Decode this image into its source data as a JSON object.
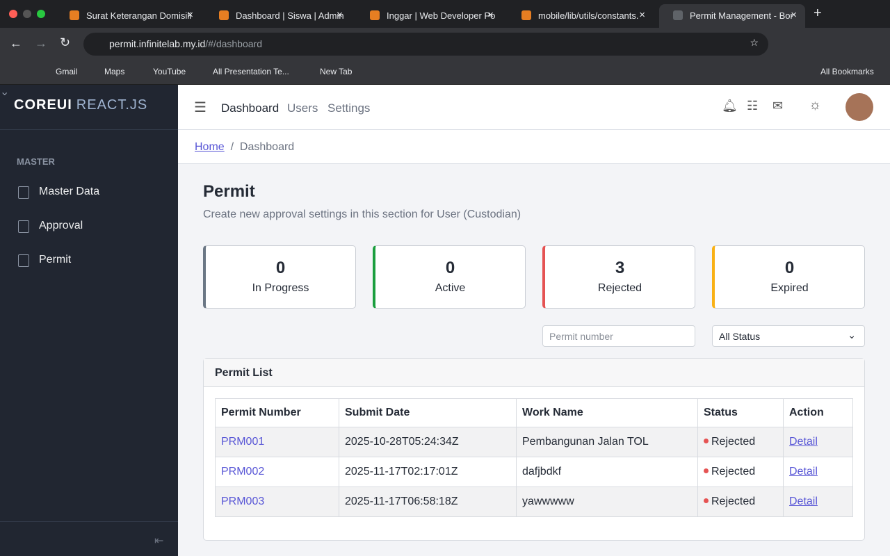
{
  "browser": {
    "tabs": [
      "Surat Keterangan Domisili",
      "Dashboard | Siswa | Admin",
      "Inggar | Web Developer Po",
      "mobile/lib/utils/constants.",
      "Permit Management - Bor"
    ],
    "url_host": "permit.infinitelab.my.id",
    "url_path": "/#/dashboard",
    "bookmarks": [
      "Gmail",
      "Maps",
      "YouTube",
      "All Presentation Te...",
      "New Tab"
    ],
    "all_bookmarks": "All Bookmarks"
  },
  "sidebar": {
    "brand": "COREUI",
    "brand_sub": "REACT.JS",
    "section": "MASTER",
    "items": [
      "Master Data",
      "Approval",
      "Permit"
    ]
  },
  "header": {
    "nav": [
      "Dashboard",
      "Users",
      "Settings"
    ]
  },
  "breadcrumb": [
    "Home",
    "Dashboard"
  ],
  "page": {
    "title": "Permit",
    "subtitle": "Create new approval settings in this section for User (Custodian)"
  },
  "stats": [
    {
      "value": 0,
      "label": "In Progress"
    },
    {
      "value": 0,
      "label": "Active"
    },
    {
      "value": 3,
      "label": "Rejected"
    },
    {
      "value": 0,
      "label": "Expired"
    }
  ],
  "filters": {
    "search_placeholder": "Permit number",
    "status": "All Status"
  },
  "table": {
    "title": "Permit List",
    "headers": [
      "Permit Number",
      "Submit Date",
      "Work Name",
      "Status",
      "Action"
    ],
    "rows": [
      [
        "PRM001",
        "2025-10-28T05:24:34Z",
        "Pembangunan Jalan TOL",
        "Rejected",
        "Detail"
      ],
      [
        "PRM002",
        "2025-11-17T02:17:01Z",
        "dafjbdkf",
        "Rejected",
        "Detail"
      ],
      [
        "PRM003",
        "2025-11-17T06:58:18Z",
        "yawwwww",
        "Rejected",
        "Detail"
      ]
    ]
  }
}
